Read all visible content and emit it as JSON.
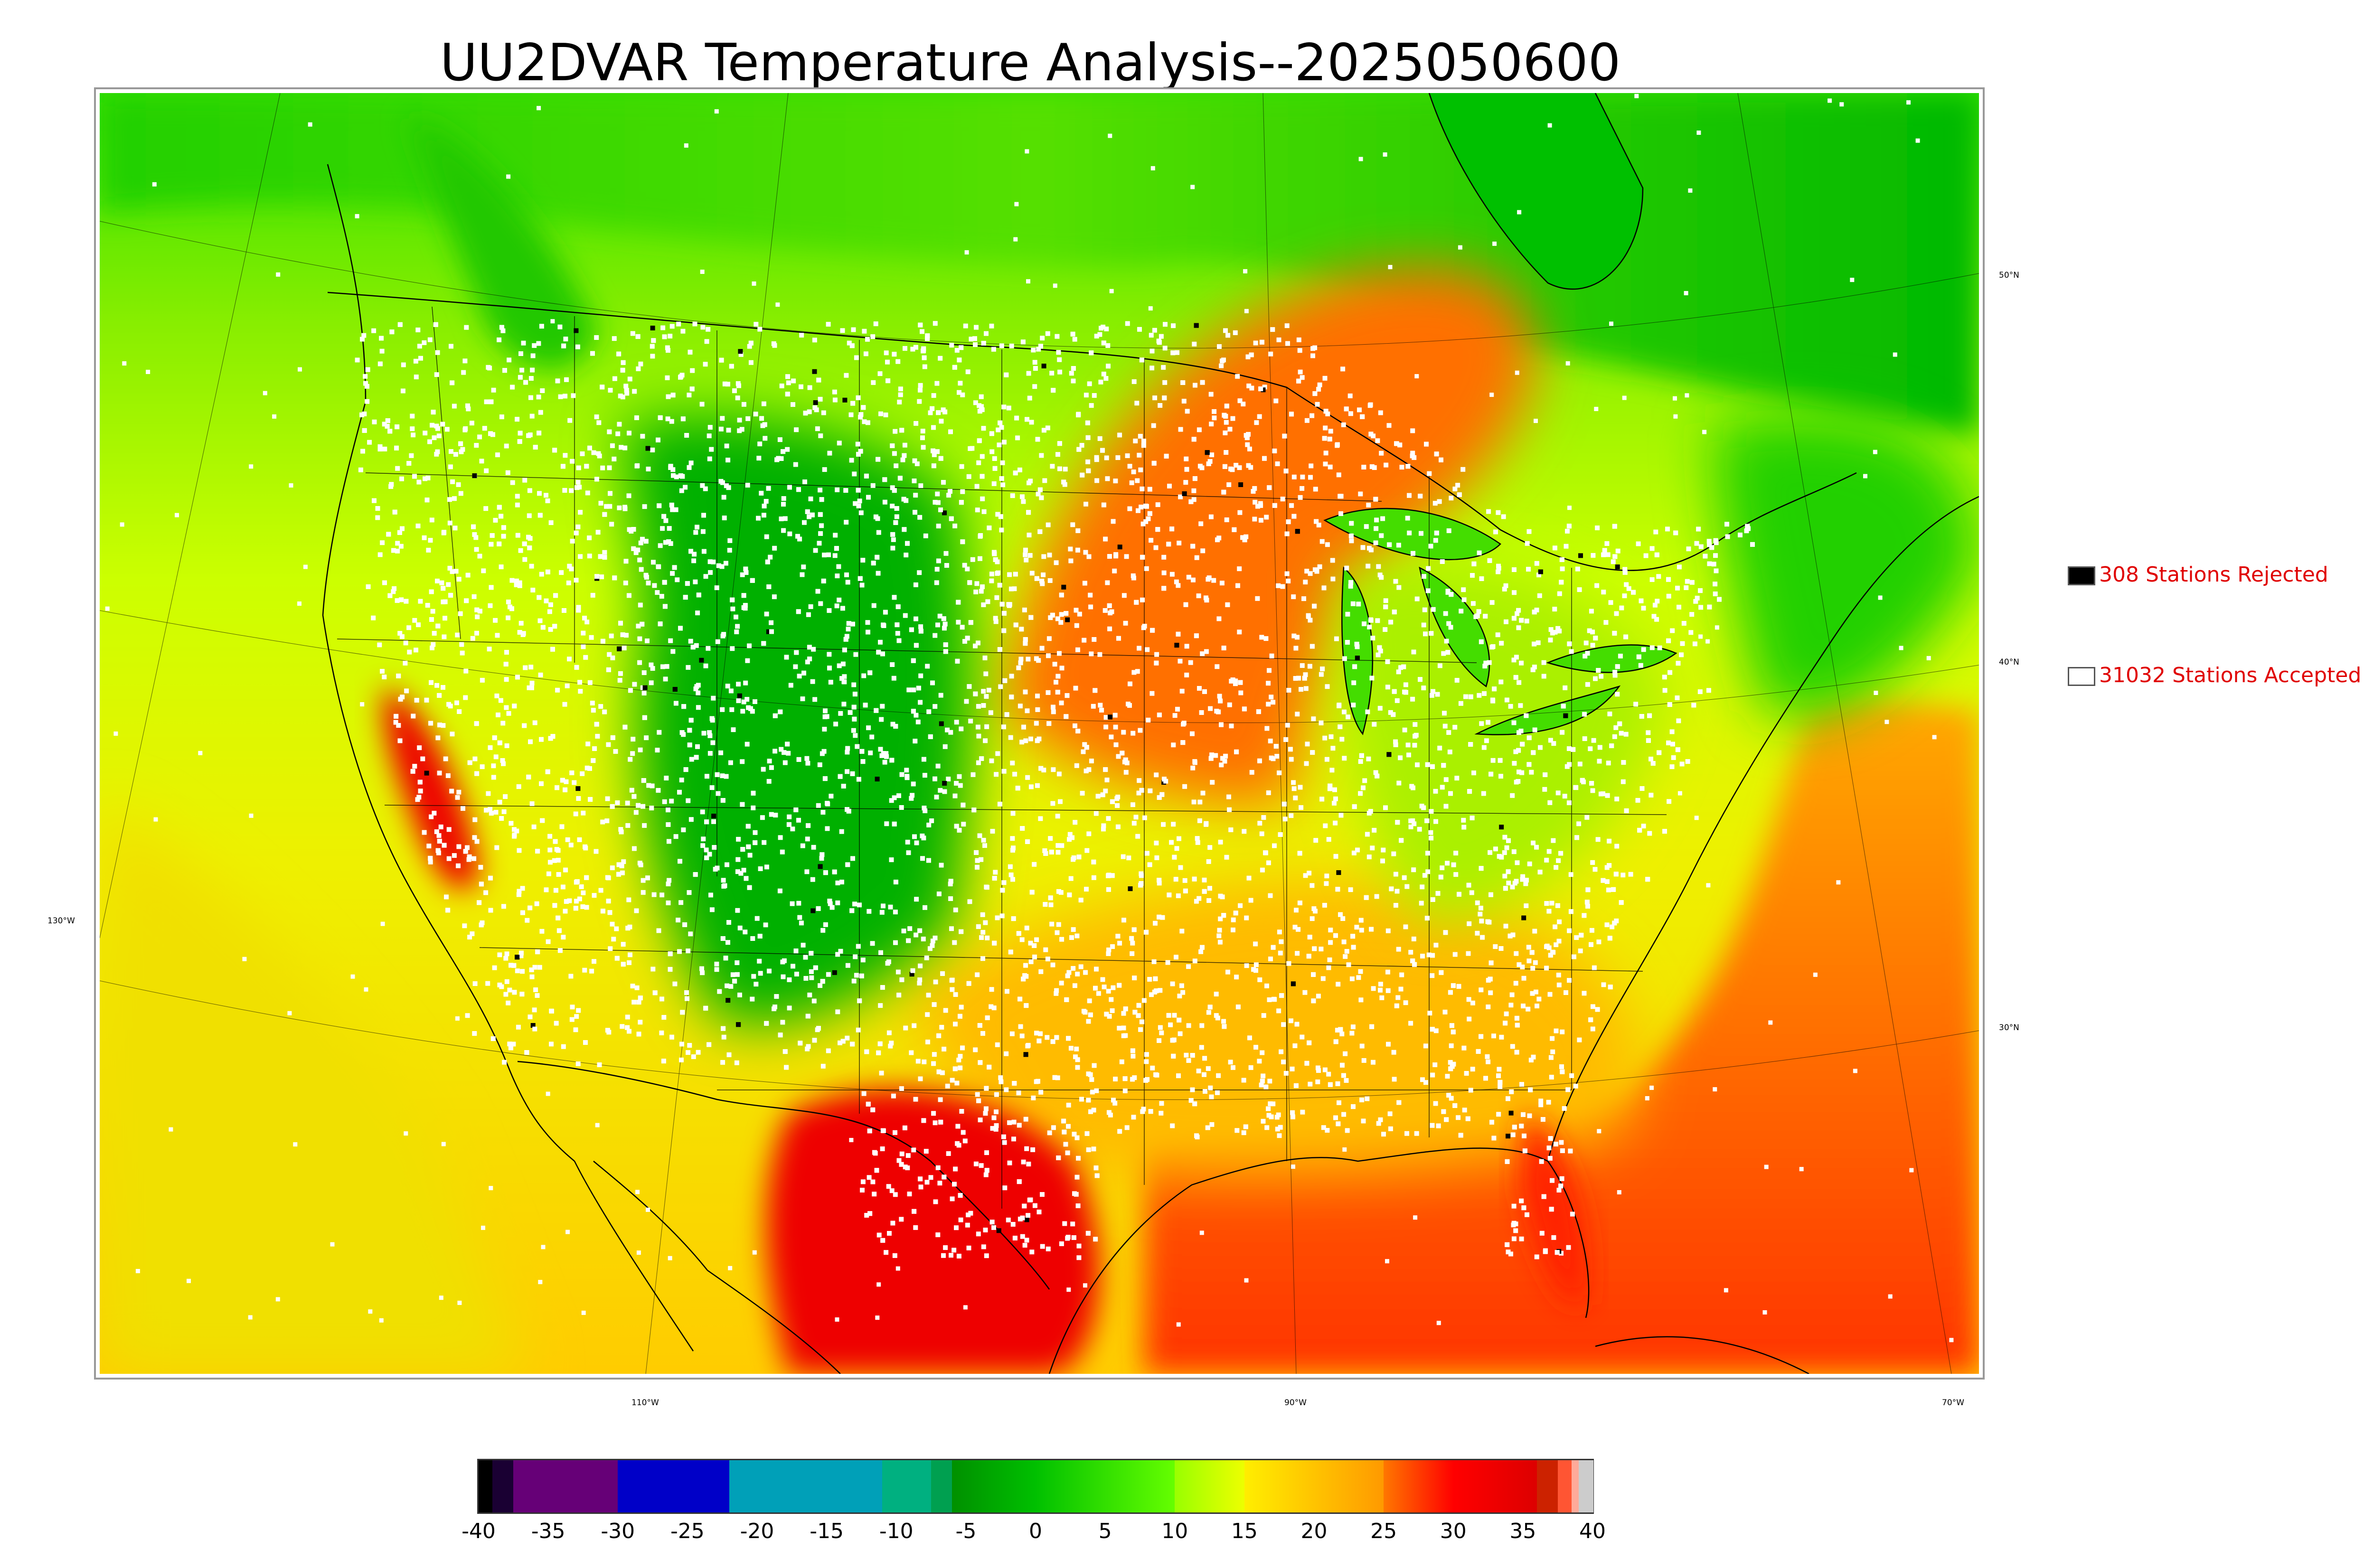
{
  "title": "UU2DVAR Temperature Analysis--2025050600",
  "legend": {
    "rejected": {
      "label": "308 Stations Rejected",
      "swatch_color": "#000000"
    },
    "accepted": {
      "label": "31032 Stations Accepted",
      "swatch_color": "#ffffff"
    },
    "text_color": "#e00000"
  },
  "longitude_labels": [
    "110°W",
    "90°W",
    "70°W"
  ],
  "latitude_labels_right": [
    "50°N",
    "40°N",
    "30°N"
  ],
  "latitude_labels_left": [
    "130°W"
  ],
  "colorbar": {
    "min": -40,
    "max": 40,
    "ticks": [
      "-40",
      "-35",
      "-30",
      "-25",
      "-20",
      "-15",
      "-10",
      "-5",
      "0",
      "5",
      "10",
      "15",
      "20",
      "25",
      "30",
      "35",
      "40"
    ],
    "tick_values": [
      -40,
      -35,
      -30,
      -25,
      -20,
      -15,
      -10,
      -5,
      0,
      5,
      10,
      15,
      20,
      25,
      30,
      35,
      40
    ],
    "bands": [
      {
        "from": -40,
        "to": -39,
        "color": "#000000"
      },
      {
        "from": -39,
        "to": -37.5,
        "color": "#1a0033"
      },
      {
        "from": -37.5,
        "to": -30,
        "color": "#660077"
      },
      {
        "from": -30,
        "to": -22,
        "color": "#0000c8"
      },
      {
        "from": -22,
        "to": -11,
        "color": "#00a0b8"
      },
      {
        "from": -11,
        "to": -7.5,
        "color": "#00b080"
      },
      {
        "from": -7.5,
        "to": -6,
        "color": "#00a050"
      },
      {
        "from": -6,
        "to": 0,
        "color": "#009000",
        "to_color": "#00c000"
      },
      {
        "from": 0,
        "to": 10,
        "color": "#00c000",
        "to_color": "#66ff00"
      },
      {
        "from": 10,
        "to": 15,
        "color": "#99ff00",
        "to_color": "#eeff00"
      },
      {
        "from": 15,
        "to": 25,
        "color": "#ffee00",
        "to_color": "#ff9900"
      },
      {
        "from": 25,
        "to": 30,
        "color": "#ff7700",
        "to_color": "#ff0000"
      },
      {
        "from": 30,
        "to": 36,
        "color": "#ff0000",
        "to_color": "#dd0000"
      },
      {
        "from": 36,
        "to": 37.5,
        "color": "#cc2200"
      },
      {
        "from": 37.5,
        "to": 38.5,
        "color": "#ff5533"
      },
      {
        "from": 38.5,
        "to": 39,
        "color": "#ffaa99"
      },
      {
        "from": 39,
        "to": 40,
        "color": "#cccccc"
      }
    ]
  },
  "colors": {
    "cold_green": "#00c000",
    "mild_yellow": "#ddff00",
    "warm_orange": "#ff9900",
    "hot_red": "#ee0000",
    "station_accepted": "#ffffff",
    "station_rejected": "#000000",
    "boundary_line": "#000000"
  }
}
